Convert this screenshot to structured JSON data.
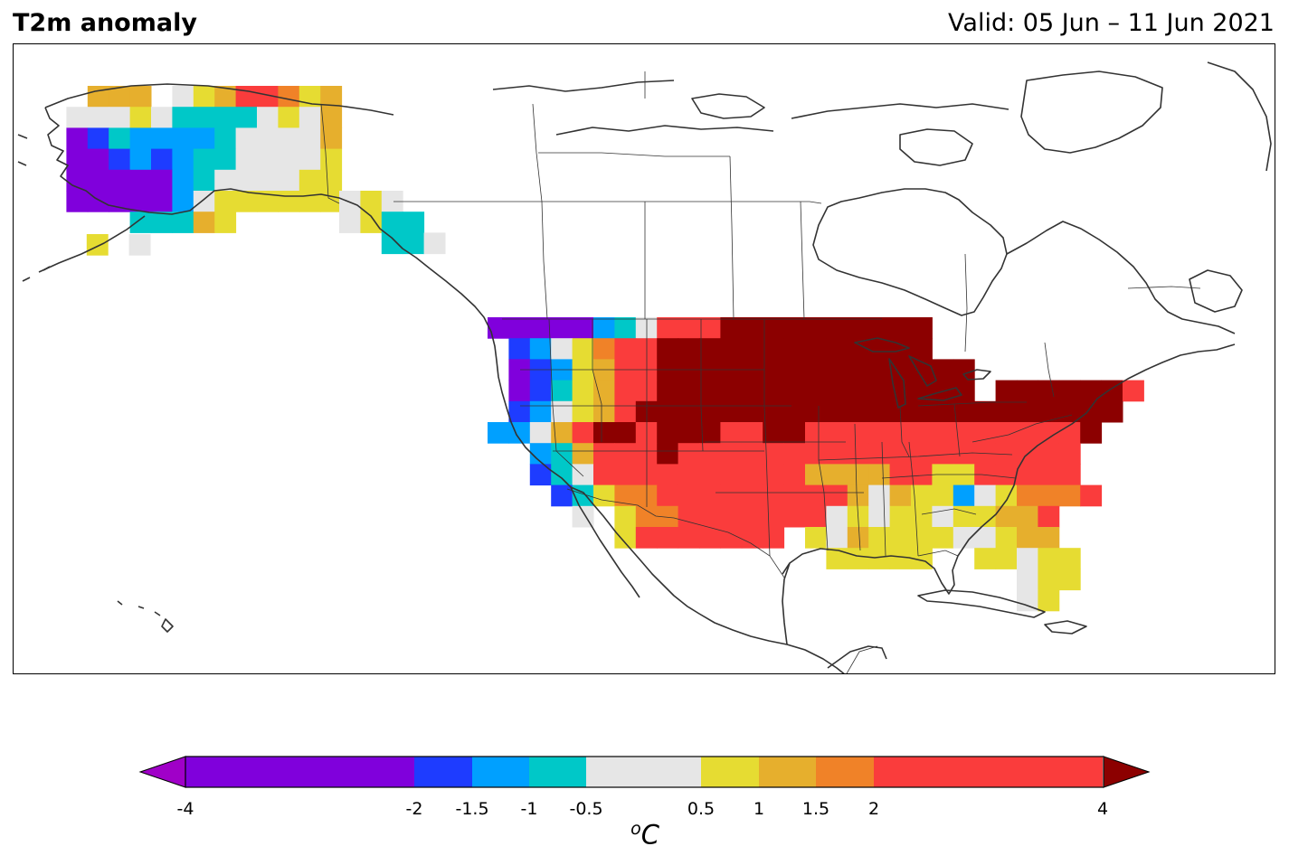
{
  "header": {
    "title": "T2m anomaly",
    "valid": "Valid: 05 Jun – 11 Jun 2021"
  },
  "colorbar": {
    "unit_base": "C",
    "unit_sup": "o",
    "ticks": [
      "-4",
      "-2",
      "-1.5",
      "-1",
      "-0.5",
      "0.5",
      "1",
      "1.5",
      "2",
      "4"
    ],
    "bins": [
      {
        "from": -4,
        "to": -2,
        "color": "#8000dc"
      },
      {
        "from": -2,
        "to": -1.5,
        "color": "#1e3cff"
      },
      {
        "from": -1.5,
        "to": -1,
        "color": "#00a0ff"
      },
      {
        "from": -1,
        "to": -0.5,
        "color": "#00c8c8"
      },
      {
        "from": -0.5,
        "to": 0.5,
        "color": "#e6e6e6"
      },
      {
        "from": 0.5,
        "to": 1,
        "color": "#e6dc32"
      },
      {
        "from": 1,
        "to": 1.5,
        "color": "#e6af2d"
      },
      {
        "from": 1.5,
        "to": 2,
        "color": "#f08228"
      },
      {
        "from": 2,
        "to": 4,
        "color": "#fa3c3c"
      }
    ],
    "under_color": "#a000c8",
    "over_color": "#8c0000"
  }
}
